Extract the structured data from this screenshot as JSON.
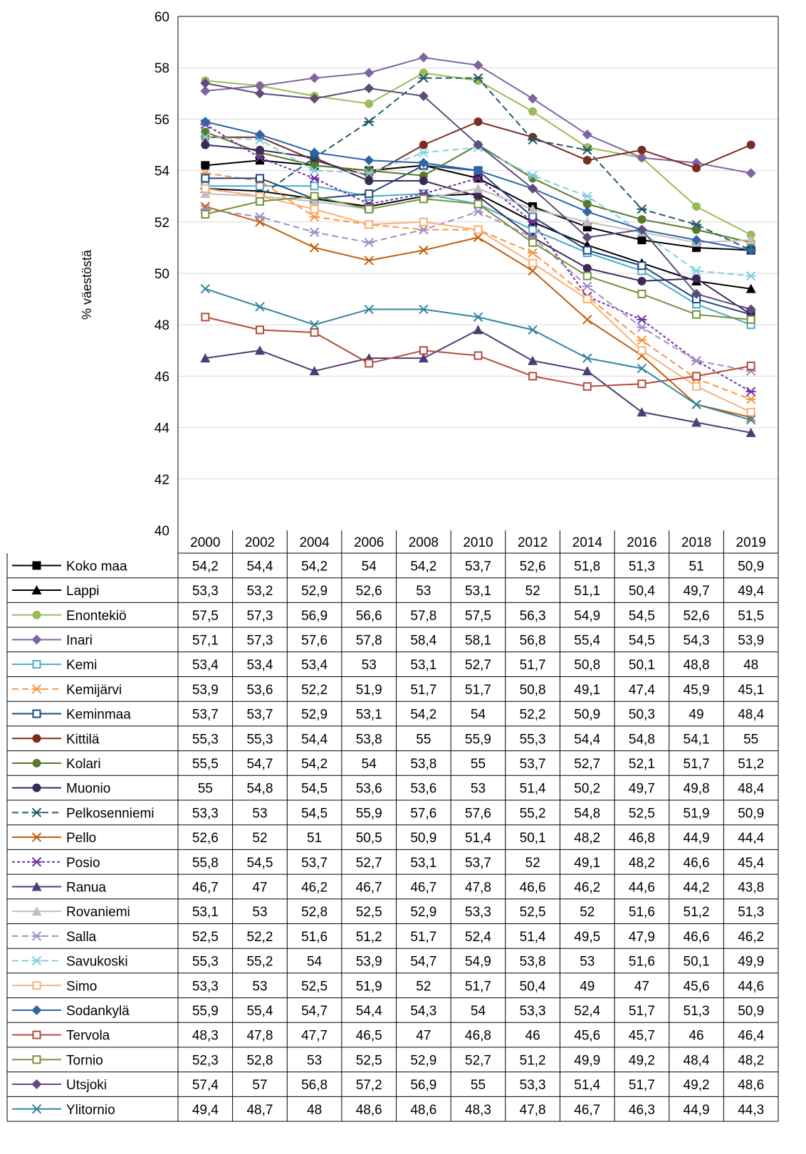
{
  "chart_data": {
    "type": "line",
    "ylabel": "% väestöstä",
    "ylim": [
      40,
      60
    ],
    "yticks": [
      40,
      42,
      44,
      46,
      48,
      50,
      52,
      54,
      56,
      58,
      60
    ],
    "grid": true,
    "legend": "data-table-bottom",
    "x": [
      "2000",
      "2002",
      "2004",
      "2006",
      "2008",
      "2010",
      "2012",
      "2014",
      "2016",
      "2018",
      "2019"
    ],
    "series": [
      {
        "name": "Koko maa",
        "color": "#000000",
        "marker": "filled-square",
        "dash": "solid",
        "values": [
          54.2,
          54.4,
          54.2,
          54,
          54.2,
          53.7,
          52.6,
          51.8,
          51.3,
          51,
          50.9
        ]
      },
      {
        "name": "Lappi",
        "color": "#000000",
        "marker": "filled-triangle",
        "dash": "solid",
        "values": [
          53.3,
          53.2,
          52.9,
          52.6,
          53,
          53.1,
          52,
          51.1,
          50.4,
          49.7,
          49.4
        ]
      },
      {
        "name": "Enontekiö",
        "color": "#9bbb59",
        "marker": "filled-circle",
        "dash": "solid",
        "values": [
          57.5,
          57.3,
          56.9,
          56.6,
          57.8,
          57.5,
          56.3,
          54.9,
          54.5,
          52.6,
          51.5
        ]
      },
      {
        "name": "Inari",
        "color": "#8064a2",
        "marker": "filled-diamond",
        "dash": "solid",
        "values": [
          57.1,
          57.3,
          57.6,
          57.8,
          58.4,
          58.1,
          56.8,
          55.4,
          54.5,
          54.3,
          53.9
        ]
      },
      {
        "name": "Kemi",
        "color": "#4bacc6",
        "marker": "open-square",
        "dash": "solid",
        "values": [
          53.4,
          53.4,
          53.4,
          53,
          53.1,
          52.7,
          51.7,
          50.8,
          50.1,
          48.8,
          48
        ]
      },
      {
        "name": "Kemijärvi",
        "color": "#f79646",
        "marker": "asterisk",
        "dash": "dashed",
        "values": [
          53.9,
          53.6,
          52.2,
          51.9,
          51.7,
          51.7,
          50.8,
          49.1,
          47.4,
          45.9,
          45.1
        ]
      },
      {
        "name": "Keminmaa",
        "color": "#1f497d",
        "marker": "open-square",
        "dash": "solid",
        "values": [
          53.7,
          53.7,
          52.9,
          53.1,
          54.2,
          54,
          52.2,
          50.9,
          50.3,
          49,
          48.4
        ]
      },
      {
        "name": "Kittilä",
        "color": "#7b2c21",
        "marker": "filled-circle",
        "dash": "solid",
        "values": [
          55.3,
          55.3,
          54.4,
          53.8,
          55,
          55.9,
          55.3,
          54.4,
          54.8,
          54.1,
          55
        ]
      },
      {
        "name": "Kolari",
        "color": "#5a7a2b",
        "marker": "filled-circle",
        "dash": "solid",
        "values": [
          55.5,
          54.7,
          54.2,
          54,
          53.8,
          55,
          53.7,
          52.7,
          52.1,
          51.7,
          51.2
        ]
      },
      {
        "name": "Muonio",
        "color": "#3b2a58",
        "marker": "filled-circle",
        "dash": "solid",
        "values": [
          55,
          54.8,
          54.5,
          53.6,
          53.6,
          53,
          51.4,
          50.2,
          49.7,
          49.8,
          48.4
        ]
      },
      {
        "name": "Pelkosenniemi",
        "color": "#215968",
        "marker": "asterisk",
        "dash": "dashed",
        "values": [
          53.3,
          53,
          54.5,
          55.9,
          57.6,
          57.6,
          55.2,
          54.8,
          52.5,
          51.9,
          50.9
        ]
      },
      {
        "name": "Pello",
        "color": "#c05f0a",
        "marker": "cross",
        "dash": "solid",
        "values": [
          52.6,
          52,
          51,
          50.5,
          50.9,
          51.4,
          50.1,
          48.2,
          46.8,
          44.9,
          44.4
        ]
      },
      {
        "name": "Posio",
        "color": "#7030a0",
        "marker": "asterisk",
        "dash": "dotted",
        "values": [
          55.8,
          54.5,
          53.7,
          52.7,
          53.1,
          53.7,
          52,
          49.1,
          48.2,
          46.6,
          45.4
        ]
      },
      {
        "name": "Ranua",
        "color": "#4d3d75",
        "marker": "filled-triangle",
        "dash": "solid",
        "values": [
          46.7,
          47,
          46.2,
          46.7,
          46.7,
          47.8,
          46.6,
          46.2,
          44.6,
          44.2,
          43.8
        ]
      },
      {
        "name": "Rovaniemi",
        "color": "#bfbfbf",
        "marker": "filled-triangle",
        "dash": "solid",
        "values": [
          53.1,
          53,
          52.8,
          52.5,
          52.9,
          53.3,
          52.5,
          52,
          51.6,
          51.2,
          51.3
        ]
      },
      {
        "name": "Salla",
        "color": "#a28cc8",
        "marker": "asterisk",
        "dash": "dashed",
        "values": [
          52.5,
          52.2,
          51.6,
          51.2,
          51.7,
          52.4,
          51.4,
          49.5,
          47.9,
          46.6,
          46.2
        ]
      },
      {
        "name": "Savukoski",
        "color": "#7fd0e0",
        "marker": "asterisk",
        "dash": "dashed",
        "values": [
          55.3,
          55.2,
          54,
          53.9,
          54.7,
          54.9,
          53.8,
          53,
          51.6,
          50.1,
          49.9
        ]
      },
      {
        "name": "Simo",
        "color": "#fab177",
        "marker": "open-square",
        "dash": "solid",
        "values": [
          53.3,
          53,
          52.5,
          51.9,
          52,
          51.7,
          50.4,
          49,
          47,
          45.6,
          44.6
        ]
      },
      {
        "name": "Sodankylä",
        "color": "#2e64a8",
        "marker": "filled-diamond",
        "dash": "solid",
        "values": [
          55.9,
          55.4,
          54.7,
          54.4,
          54.3,
          54,
          53.3,
          52.4,
          51.7,
          51.3,
          50.9
        ]
      },
      {
        "name": "Tervola",
        "color": "#b44b3c",
        "marker": "open-square",
        "dash": "solid",
        "values": [
          48.3,
          47.8,
          47.7,
          46.5,
          47,
          46.8,
          46,
          45.6,
          45.7,
          46,
          46.4
        ]
      },
      {
        "name": "Tornio",
        "color": "#76933c",
        "marker": "open-square",
        "dash": "solid",
        "values": [
          52.3,
          52.8,
          53,
          52.5,
          52.9,
          52.7,
          51.2,
          49.9,
          49.2,
          48.4,
          48.2
        ]
      },
      {
        "name": "Utsjoki",
        "color": "#604a7b",
        "marker": "filled-diamond",
        "dash": "solid",
        "values": [
          57.4,
          57,
          56.8,
          57.2,
          56.9,
          55,
          53.3,
          51.4,
          51.7,
          49.2,
          48.6
        ]
      },
      {
        "name": "Ylitornio",
        "color": "#31859c",
        "marker": "cross",
        "dash": "solid",
        "values": [
          49.4,
          48.7,
          48,
          48.6,
          48.6,
          48.3,
          47.8,
          46.7,
          46.3,
          44.9,
          44.3
        ]
      }
    ]
  }
}
